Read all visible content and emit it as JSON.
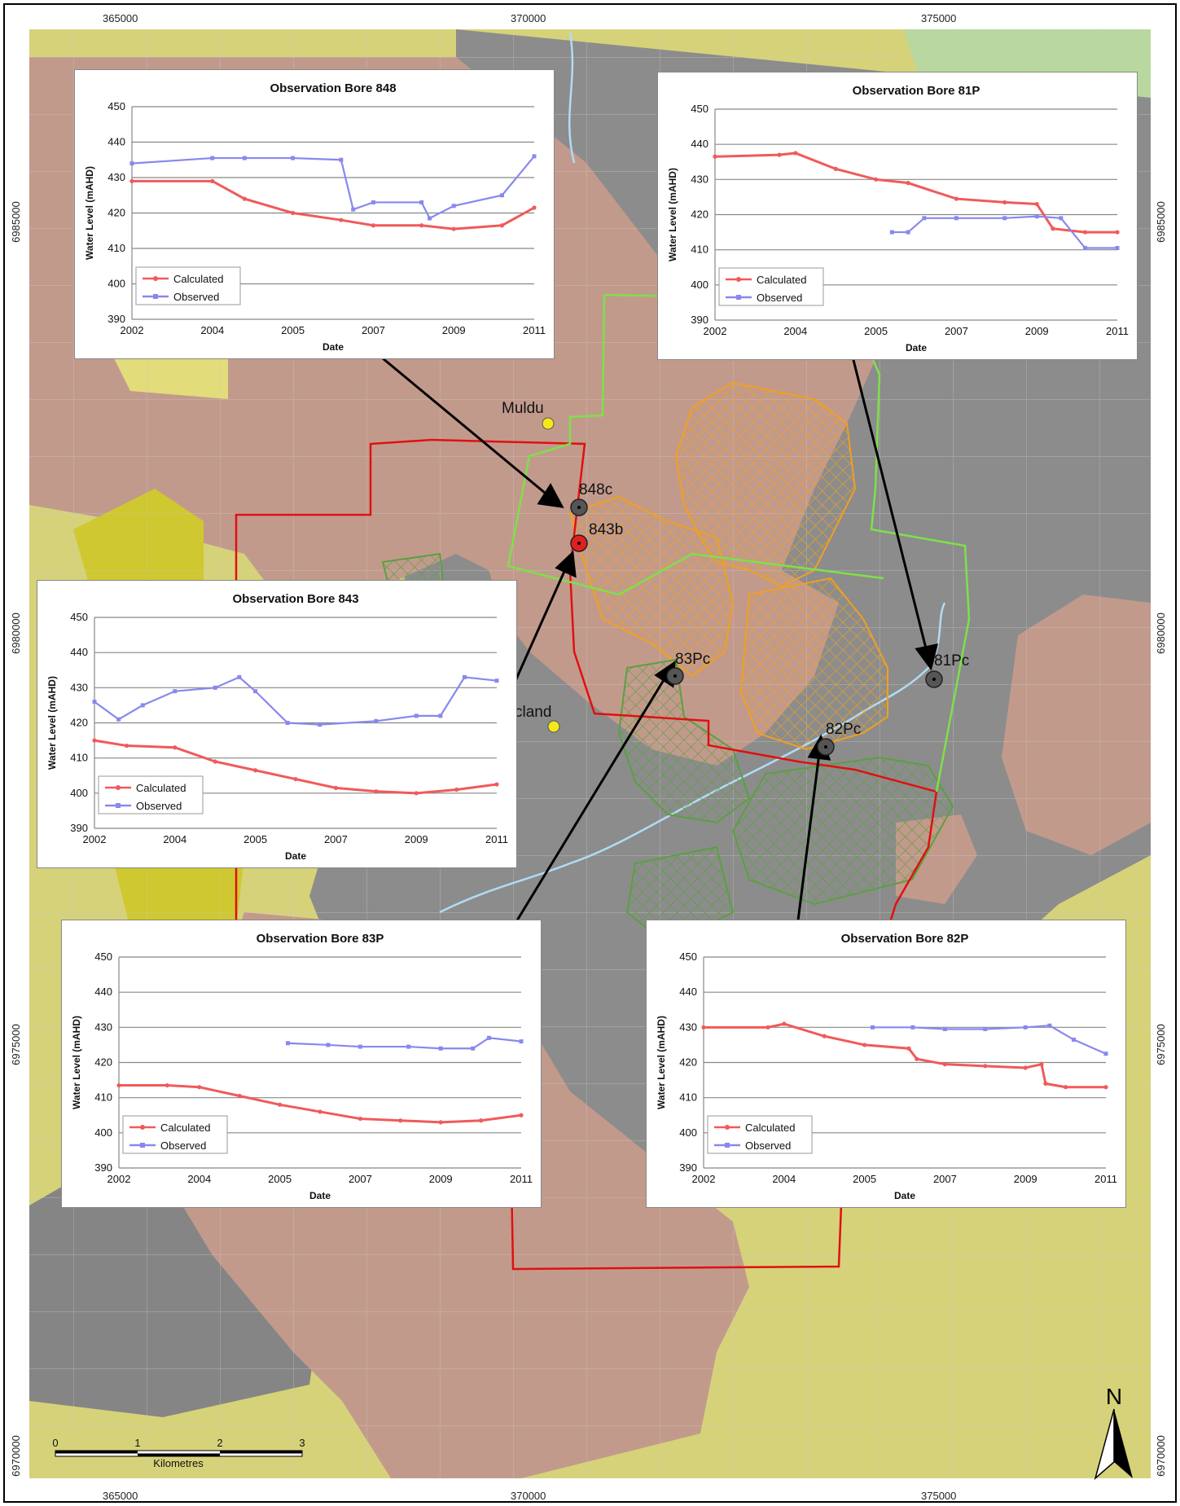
{
  "map": {
    "easting_ticks": [
      "365000",
      "370000",
      "375000"
    ],
    "northing_ticks": [
      "6985000",
      "6980000",
      "6975000",
      "6970000"
    ],
    "places": [
      {
        "name": "Muldu"
      },
      {
        "name": "cland"
      }
    ],
    "bores": [
      {
        "name": "848c",
        "color": "#555555"
      },
      {
        "name": "843b",
        "color": "#e02020"
      },
      {
        "name": "83Pc",
        "color": "#555555"
      },
      {
        "name": "82Pc",
        "color": "#555555"
      },
      {
        "name": "81Pc",
        "color": "#555555"
      }
    ],
    "scale_bar": {
      "ticks": [
        "0",
        "1",
        "2",
        "3"
      ],
      "unit": "Kilometres"
    },
    "north_label": "N",
    "colors": {
      "yellow_zone": "#d6d27a",
      "pink_zone": "#c29a8c",
      "grey_zone": "#8c8c8c",
      "red_boundary": "#e01010",
      "green_boundary": "#7ee04a",
      "orange_hatch": "#f0a020",
      "green_hatch": "#5aa040",
      "river": "#b0dcf4"
    }
  },
  "legend": {
    "calculated": "Calculated",
    "observed": "Observed"
  },
  "series_colors": {
    "calculated": "#f05a5a",
    "observed": "#8888ee"
  },
  "chart_data": [
    {
      "type": "line",
      "title": "Observation Bore  848",
      "xlabel": "Date",
      "ylabel": "Water Level (mAHD)",
      "ylim": [
        390,
        450
      ],
      "y_ticks": [
        390,
        400,
        410,
        420,
        430,
        440,
        450
      ],
      "x_ticks": [
        "2002",
        "2004",
        "2005",
        "2007",
        "2009",
        "2011"
      ],
      "series": [
        {
          "name": "Calculated",
          "x": [
            0,
            1,
            1.4,
            2,
            2.6,
            3,
            3.6,
            4,
            4.6,
            5
          ],
          "y": [
            429,
            429,
            424,
            420,
            418,
            416.5,
            416.5,
            415.5,
            416.5,
            421.5
          ]
        },
        {
          "name": "Observed",
          "x": [
            0,
            1,
            1.4,
            2,
            2.6,
            2.75,
            3,
            3.6,
            3.7,
            4,
            4.6,
            5
          ],
          "y": [
            434,
            435.5,
            435.5,
            435.5,
            435,
            421,
            423,
            423,
            418.5,
            422,
            425,
            436
          ]
        }
      ]
    },
    {
      "type": "line",
      "title": "Observation Bore 81P",
      "xlabel": "Date",
      "ylabel": "Water Level (mAHD)",
      "ylim": [
        390,
        450
      ],
      "y_ticks": [
        390,
        400,
        410,
        420,
        430,
        440,
        450
      ],
      "x_ticks": [
        "2002",
        "2004",
        "2005",
        "2007",
        "2009",
        "2011"
      ],
      "series": [
        {
          "name": "Calculated",
          "x": [
            0,
            0.8,
            1,
            1.5,
            2,
            2.4,
            3,
            3.6,
            4,
            4.2,
            4.6,
            5
          ],
          "y": [
            436.5,
            437,
            437.5,
            433,
            430,
            429,
            424.5,
            423.5,
            423,
            416,
            415,
            415
          ]
        },
        {
          "name": "Observed",
          "x": [
            2.2,
            2.4,
            2.6,
            3,
            3.6,
            4,
            4.3,
            4.6,
            5
          ],
          "y": [
            415,
            415,
            419,
            419,
            419,
            419.5,
            419,
            410.5,
            410.5
          ]
        }
      ]
    },
    {
      "type": "line",
      "title": "Observation Bore  843",
      "xlabel": "Date",
      "ylabel": "Water Level (mAHD)",
      "ylim": [
        390,
        450
      ],
      "y_ticks": [
        390,
        400,
        410,
        420,
        430,
        440,
        450
      ],
      "x_ticks": [
        "2002",
        "2004",
        "2005",
        "2007",
        "2009",
        "2011"
      ],
      "series": [
        {
          "name": "Calculated",
          "x": [
            0,
            0.4,
            1,
            1.5,
            2,
            2.5,
            3,
            3.5,
            4,
            4.5,
            5
          ],
          "y": [
            415,
            413.5,
            413,
            409,
            406.5,
            404,
            401.5,
            400.5,
            400,
            401,
            402.5
          ]
        },
        {
          "name": "Observed",
          "x": [
            0,
            0.3,
            0.6,
            1,
            1.5,
            1.8,
            2,
            2.4,
            2.8,
            3.5,
            4,
            4.3,
            4.6,
            5
          ],
          "y": [
            426,
            421,
            425,
            429,
            430,
            433,
            429,
            420,
            419.5,
            420.5,
            422,
            422,
            433,
            432
          ]
        }
      ]
    },
    {
      "type": "line",
      "title": "Observation Bore  83P",
      "xlabel": "Date",
      "ylabel": "Water Level (mAHD)",
      "ylim": [
        390,
        450
      ],
      "y_ticks": [
        390,
        400,
        410,
        420,
        430,
        440,
        450
      ],
      "x_ticks": [
        "2002",
        "2004",
        "2005",
        "2007",
        "2009",
        "2011"
      ],
      "series": [
        {
          "name": "Calculated",
          "x": [
            0,
            0.6,
            1,
            1.5,
            2,
            2.5,
            3,
            3.5,
            4,
            4.5,
            5
          ],
          "y": [
            413.5,
            413.5,
            413,
            410.5,
            408,
            406,
            404,
            403.5,
            403,
            403.5,
            405
          ]
        },
        {
          "name": "Observed",
          "x": [
            2.1,
            2.6,
            3,
            3.6,
            4,
            4.4,
            4.6,
            5
          ],
          "y": [
            425.5,
            425,
            424.5,
            424.5,
            424,
            424,
            427,
            426
          ]
        }
      ]
    },
    {
      "type": "line",
      "title": "Observation Bore  82P",
      "xlabel": "Date",
      "ylabel": "Water Level (mAHD)",
      "ylim": [
        390,
        450
      ],
      "y_ticks": [
        390,
        400,
        410,
        420,
        430,
        440,
        450
      ],
      "x_ticks": [
        "2002",
        "2004",
        "2005",
        "2007",
        "2009",
        "2011"
      ],
      "series": [
        {
          "name": "Calculated",
          "x": [
            0,
            0.8,
            1,
            1.5,
            2,
            2.55,
            2.65,
            3,
            3.5,
            4,
            4.2,
            4.25,
            4.5,
            5
          ],
          "y": [
            430,
            430,
            431,
            427.5,
            425,
            424,
            421,
            419.5,
            419,
            418.5,
            419.5,
            414,
            413,
            413
          ]
        },
        {
          "name": "Observed",
          "x": [
            2.1,
            2.6,
            3,
            3.5,
            4,
            4.3,
            4.6,
            5
          ],
          "y": [
            430,
            430,
            429.5,
            429.5,
            430,
            430.5,
            426.5,
            422.5
          ]
        }
      ]
    }
  ]
}
